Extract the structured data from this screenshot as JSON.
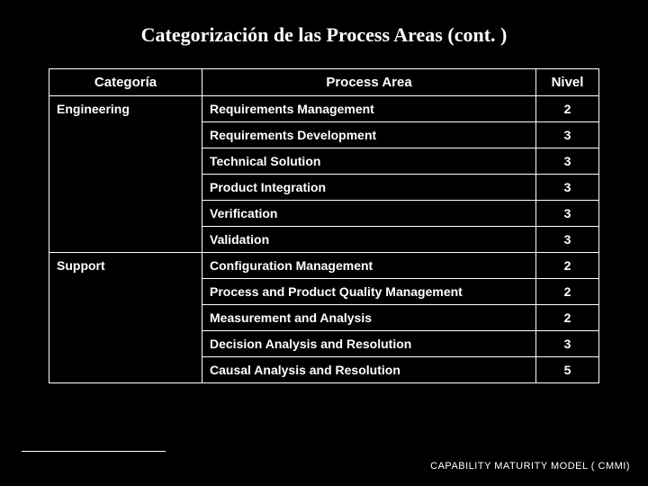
{
  "title": "Categorización de las Process Areas (cont. )",
  "table": {
    "type": "table",
    "background_color": "#000000",
    "border_color": "#ffffff",
    "text_color": "#ffffff",
    "header_fontsize": 15,
    "cell_fontsize": 14,
    "font_weight": "bold",
    "columns": [
      {
        "key": "categoria",
        "label": "Categoría",
        "width": 170,
        "align": "center"
      },
      {
        "key": "process_area",
        "label": "Process Area",
        "align": "center"
      },
      {
        "key": "nivel",
        "label": "Nivel",
        "width": 70,
        "align": "center"
      }
    ],
    "groups": [
      {
        "category": "Engineering",
        "rows": [
          {
            "process_area": "Requirements Management",
            "nivel": "2"
          },
          {
            "process_area": "Requirements Development",
            "nivel": "3"
          },
          {
            "process_area": "Technical Solution",
            "nivel": "3"
          },
          {
            "process_area": "Product Integration",
            "nivel": "3"
          },
          {
            "process_area": "Verification",
            "nivel": "3"
          },
          {
            "process_area": "Validation",
            "nivel": "3"
          }
        ]
      },
      {
        "category": "Support",
        "rows": [
          {
            "process_area": "Configuration Management",
            "nivel": "2"
          },
          {
            "process_area": "Process and Product Quality Management",
            "nivel": "2"
          },
          {
            "process_area": "Measurement and Analysis",
            "nivel": "2"
          },
          {
            "process_area": "Decision Analysis and Resolution",
            "nivel": "3"
          },
          {
            "process_area": "Causal Analysis and Resolution",
            "nivel": "5"
          }
        ]
      }
    ]
  },
  "footer": "CAPABILITY MATURITY MODEL  ( CMMI)"
}
